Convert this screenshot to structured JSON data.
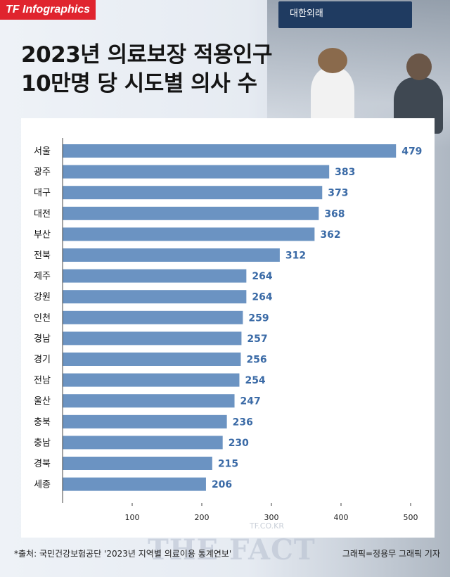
{
  "badge": "TF Infographics",
  "photo": {
    "sign_text": "대한외래"
  },
  "title_line1": "2023년 의료보장 적용인구",
  "title_line2": "10만명 당 시도별 의사 수",
  "source": "*출처: 국민건강보험공단 '2023년 지역별 의료이용 통계연보'",
  "credit": "그래픽=정용무 그래픽 기자",
  "watermark_url": "TF.CO.KR",
  "watermark": "THE FACT",
  "colors": {
    "bar": "#6b93c2",
    "value": "#3a6aa6",
    "badge": "#e0242e"
  },
  "chart_data": {
    "type": "bar",
    "orientation": "horizontal",
    "categories": [
      "서울",
      "광주",
      "대구",
      "대전",
      "부산",
      "전북",
      "제주",
      "강원",
      "인천",
      "경남",
      "경기",
      "전남",
      "울산",
      "충북",
      "충남",
      "경북",
      "세종"
    ],
    "values": [
      479,
      383,
      373,
      368,
      362,
      312,
      264,
      264,
      259,
      257,
      256,
      254,
      247,
      236,
      230,
      215,
      206
    ],
    "xlim": [
      0,
      500
    ],
    "xticks": [
      100,
      200,
      300,
      400,
      500
    ],
    "grid": false,
    "legend": "none"
  }
}
